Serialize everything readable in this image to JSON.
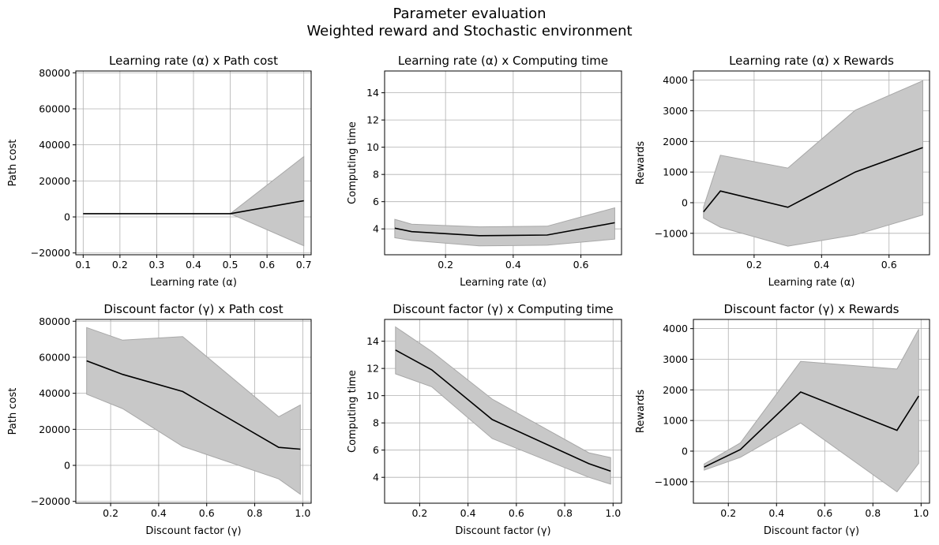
{
  "figure": {
    "title_line1": "Parameter evaluation",
    "title_line2": "Weighted reward and Stochastic environment"
  },
  "style": {
    "line_color": "#000000",
    "band_color": "#c8c8c8",
    "band_edge": "#a8a8a8",
    "grid_color": "#b0b0b0"
  },
  "chart_data": [
    {
      "type": "line",
      "title": "Learning rate (α) x Path cost",
      "xlabel": "Learning rate (α)",
      "ylabel": "Path cost",
      "xlim": [
        0.08,
        0.72
      ],
      "ylim": [
        -21000,
        81000
      ],
      "xticks": [
        0.1,
        0.2,
        0.3,
        0.4,
        0.5,
        0.6,
        0.7
      ],
      "xtick_labels": [
        "0.1",
        "0.2",
        "0.3",
        "0.4",
        "0.5",
        "0.6",
        "0.7"
      ],
      "yticks": [
        -20000,
        0,
        20000,
        40000,
        60000,
        80000
      ],
      "ytick_labels": [
        "−20000",
        "0",
        "20000",
        "40000",
        "60000",
        "80000"
      ],
      "grid": true,
      "x": [
        0.1,
        0.3,
        0.5,
        0.7
      ],
      "y": [
        1800,
        1800,
        1800,
        9000
      ],
      "lower": [
        1800,
        1800,
        1800,
        -16000
      ],
      "upper": [
        1800,
        1800,
        1800,
        33500
      ]
    },
    {
      "type": "line",
      "title": "Learning rate (α) x Computing time",
      "xlabel": "Learning rate (α)",
      "ylabel": "Computing time",
      "xlim": [
        0.02,
        0.72
      ],
      "ylim": [
        2.1,
        15.6
      ],
      "xticks": [
        0.2,
        0.4,
        0.6
      ],
      "xtick_labels": [
        "0.2",
        "0.4",
        "0.6"
      ],
      "yticks": [
        4,
        6,
        8,
        10,
        12,
        14
      ],
      "ytick_labels": [
        "4",
        "6",
        "8",
        "10",
        "12",
        "14"
      ],
      "grid": true,
      "x": [
        0.05,
        0.1,
        0.3,
        0.5,
        0.7
      ],
      "y": [
        4.05,
        3.8,
        3.5,
        3.55,
        4.45
      ],
      "lower": [
        3.35,
        3.15,
        2.75,
        2.8,
        3.25
      ],
      "upper": [
        4.7,
        4.35,
        4.15,
        4.2,
        5.55
      ]
    },
    {
      "type": "line",
      "title": "Learning rate (α) x Rewards",
      "xlabel": "Learning rate (α)",
      "ylabel": "Rewards",
      "xlim": [
        0.02,
        0.72
      ],
      "ylim": [
        -1700,
        4300
      ],
      "xticks": [
        0.2,
        0.4,
        0.6
      ],
      "xtick_labels": [
        "0.2",
        "0.4",
        "0.6"
      ],
      "yticks": [
        -1000,
        0,
        1000,
        2000,
        3000,
        4000
      ],
      "ytick_labels": [
        "−1000",
        "0",
        "1000",
        "2000",
        "3000",
        "4000"
      ],
      "grid": true,
      "x": [
        0.05,
        0.1,
        0.3,
        0.5,
        0.7
      ],
      "y": [
        -300,
        380,
        -150,
        1000,
        1800
      ],
      "lower": [
        -500,
        -800,
        -1420,
        -1050,
        -400
      ],
      "upper": [
        -150,
        1550,
        1130,
        3020,
        3980
      ]
    },
    {
      "type": "line",
      "title": "Discount factor (γ) x Path cost",
      "xlabel": "Discount factor (γ)",
      "ylabel": "Path cost",
      "xlim": [
        0.055,
        1.035
      ],
      "ylim": [
        -21000,
        81000
      ],
      "xticks": [
        0.2,
        0.4,
        0.6,
        0.8,
        1.0
      ],
      "xtick_labels": [
        "0.2",
        "0.4",
        "0.6",
        "0.8",
        "1.0"
      ],
      "yticks": [
        -20000,
        0,
        20000,
        40000,
        60000,
        80000
      ],
      "ytick_labels": [
        "−20000",
        "0",
        "20000",
        "40000",
        "60000",
        "80000"
      ],
      "grid": true,
      "x": [
        0.1,
        0.25,
        0.5,
        0.9,
        0.99
      ],
      "y": [
        58000,
        50500,
        41000,
        10000,
        9000
      ],
      "lower": [
        39500,
        31500,
        10500,
        -7500,
        -16000
      ],
      "upper": [
        76500,
        69500,
        71500,
        27000,
        33500
      ]
    },
    {
      "type": "line",
      "title": "Discount factor (γ) x Computing time",
      "xlabel": "Discount factor (γ)",
      "ylabel": "Computing time",
      "xlim": [
        0.055,
        1.035
      ],
      "ylim": [
        2.1,
        15.6
      ],
      "xticks": [
        0.2,
        0.4,
        0.6,
        0.8,
        1.0
      ],
      "xtick_labels": [
        "0.2",
        "0.4",
        "0.6",
        "0.8",
        "1.0"
      ],
      "yticks": [
        4,
        6,
        8,
        10,
        12,
        14
      ],
      "ytick_labels": [
        "4",
        "6",
        "8",
        "10",
        "12",
        "14"
      ],
      "grid": true,
      "x": [
        0.1,
        0.25,
        0.5,
        0.9,
        0.99
      ],
      "y": [
        13.35,
        11.9,
        8.25,
        5.0,
        4.45
      ],
      "lower": [
        11.6,
        10.65,
        6.85,
        4.0,
        3.5
      ],
      "upper": [
        15.05,
        13.25,
        9.75,
        5.8,
        5.45
      ]
    },
    {
      "type": "line",
      "title": "Discount factor (γ) x Rewards",
      "xlabel": "Discount factor (γ)",
      "ylabel": "Rewards",
      "xlim": [
        0.055,
        1.035
      ],
      "ylim": [
        -1700,
        4300
      ],
      "xticks": [
        0.2,
        0.4,
        0.6,
        0.8,
        1.0
      ],
      "xtick_labels": [
        "0.2",
        "0.4",
        "0.6",
        "0.8",
        "1.0"
      ],
      "yticks": [
        -1000,
        0,
        1000,
        2000,
        3000,
        4000
      ],
      "ytick_labels": [
        "−1000",
        "0",
        "1000",
        "2000",
        "3000",
        "4000"
      ],
      "grid": true,
      "x": [
        0.1,
        0.25,
        0.5,
        0.9,
        0.99
      ],
      "y": [
        -520,
        50,
        1930,
        680,
        1800
      ],
      "lower": [
        -620,
        -200,
        920,
        -1330,
        -400
      ],
      "upper": [
        -420,
        270,
        2930,
        2680,
        3980
      ]
    }
  ]
}
